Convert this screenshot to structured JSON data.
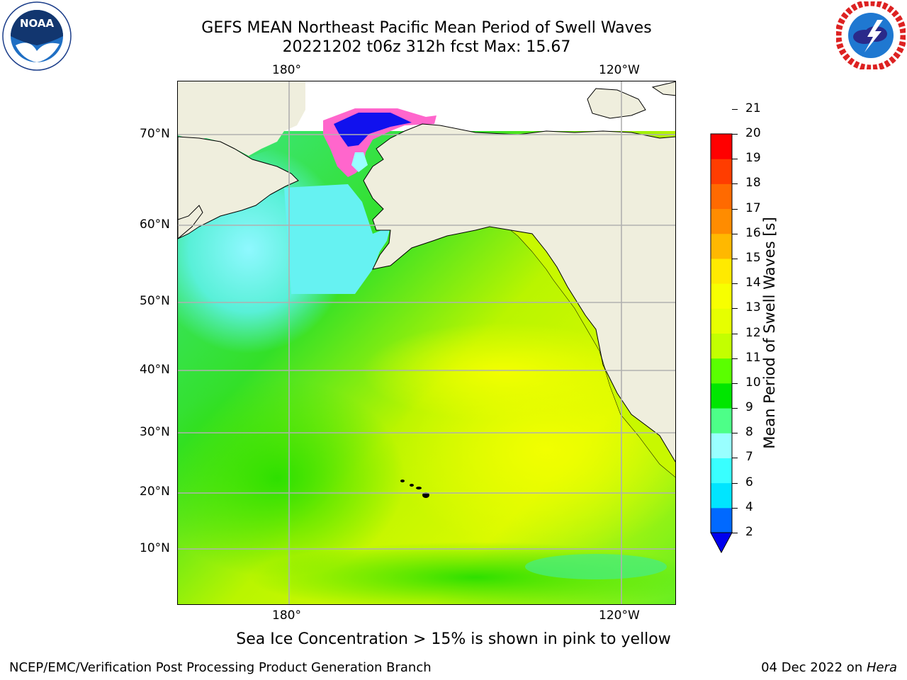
{
  "title": {
    "line1": "GEFS MEAN Northeast Pacific Mean Period of Swell Waves",
    "line2": "20221202 t06z 312h fcst   Max: 15.67"
  },
  "map": {
    "lon_labels_top": [
      "180°",
      "120°W"
    ],
    "lon_labels_bottom": [
      "180°",
      "120°W"
    ],
    "lat_labels": [
      "70°N",
      "60°N",
      "50°N",
      "40°N",
      "30°N",
      "20°N",
      "10°N"
    ],
    "land_color": "#efeedd",
    "grid_color": "#b0b0b0"
  },
  "colorbar": {
    "label": "Mean Period of Swell Waves [s]",
    "ticks": [
      "2",
      "4",
      "6",
      "7",
      "8",
      "9",
      "10",
      "11",
      "12",
      "13",
      "14",
      "15",
      "16",
      "17",
      "18",
      "19",
      "20",
      "21"
    ],
    "colors": [
      "#0069ff",
      "#00e5ff",
      "#39ffff",
      "#99ffff",
      "#4dff88",
      "#00e600",
      "#5aff00",
      "#c3ff00",
      "#e6ff00",
      "#f7ff00",
      "#ffea00",
      "#ffb800",
      "#ff8c00",
      "#ff6a00",
      "#ff3d00",
      "#ff0000"
    ],
    "extend_color": "#0000ee"
  },
  "note": "Sea Ice Concentration > 15% is shown in pink to yellow",
  "footer": {
    "left": "NCEP/EMC/Verification Post Processing Product Generation Branch",
    "right_date": "04 Dec 2022 on ",
    "right_host": "Hera"
  },
  "logos": {
    "noaa_text": "NOAA",
    "noaa_ring": "NATIONAL OCEANIC AND ATMOSPHERIC ADMINISTRATION · U.S. DEPARTMENT OF COMMERCE",
    "nws_ring": "NATIONAL WEATHER SERVICE"
  }
}
